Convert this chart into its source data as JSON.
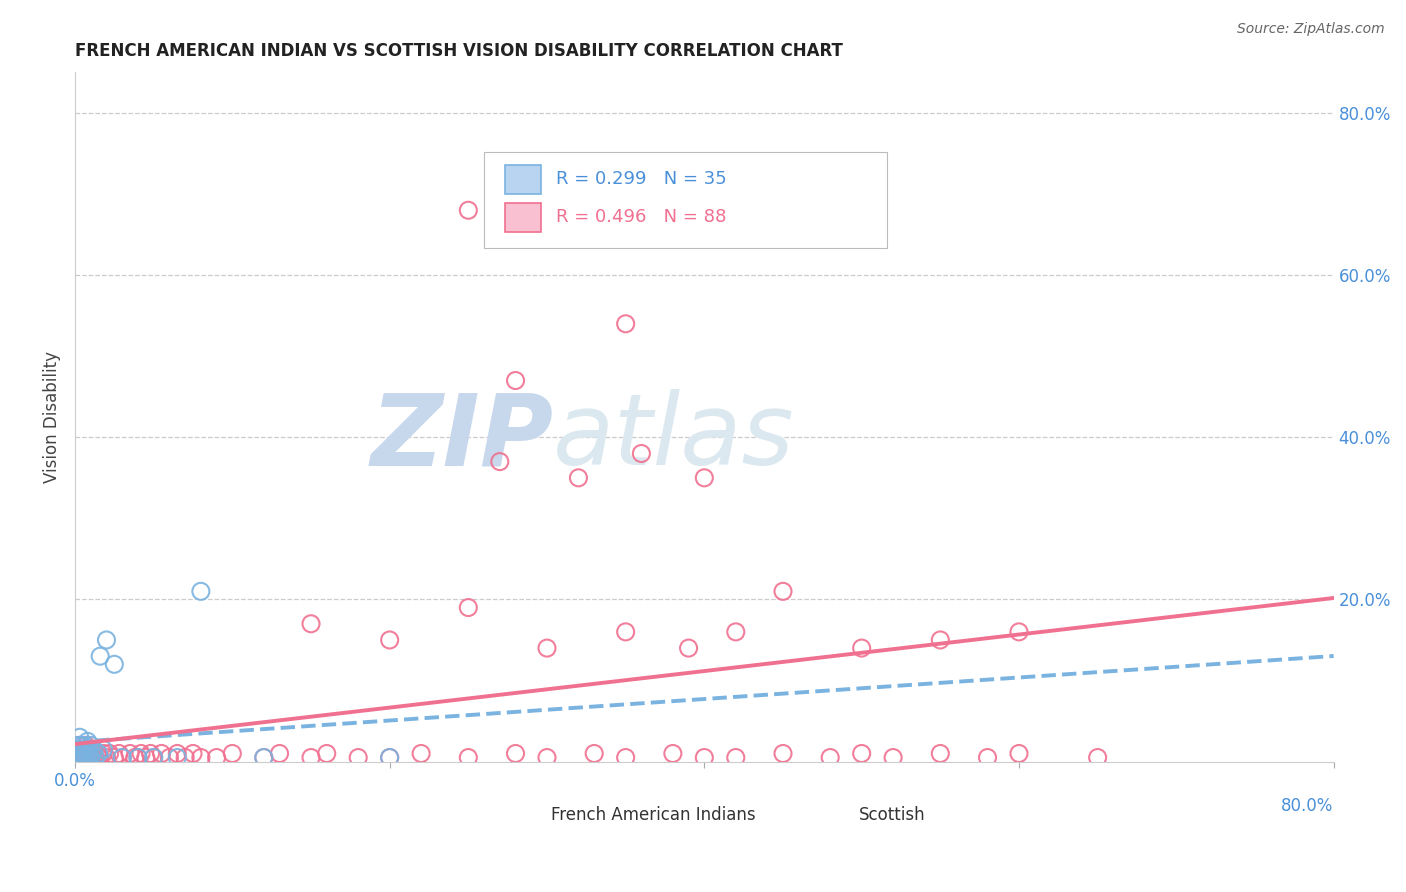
{
  "title": "FRENCH AMERICAN INDIAN VS SCOTTISH VISION DISABILITY CORRELATION CHART",
  "source": "Source: ZipAtlas.com",
  "ylabel": "Vision Disability",
  "french_color": "#7ab3e0",
  "french_face_color": "#b8d4f0",
  "scottish_color": "#f07090",
  "scottish_face_color": "#f8c0d0",
  "background_color": "#ffffff",
  "french_x": [
    0.001,
    0.002,
    0.002,
    0.003,
    0.003,
    0.003,
    0.004,
    0.004,
    0.005,
    0.005,
    0.005,
    0.006,
    0.006,
    0.007,
    0.007,
    0.008,
    0.008,
    0.009,
    0.01,
    0.01,
    0.011,
    0.012,
    0.013,
    0.015,
    0.016,
    0.018,
    0.02,
    0.025,
    0.03,
    0.04,
    0.05,
    0.065,
    0.08,
    0.12,
    0.2
  ],
  "french_y": [
    0.005,
    0.01,
    0.02,
    0.005,
    0.015,
    0.03,
    0.01,
    0.02,
    0.005,
    0.01,
    0.015,
    0.005,
    0.02,
    0.01,
    0.015,
    0.005,
    0.025,
    0.01,
    0.005,
    0.02,
    0.01,
    0.015,
    0.005,
    0.01,
    0.13,
    0.015,
    0.15,
    0.12,
    0.005,
    0.005,
    0.005,
    0.005,
    0.21,
    0.005,
    0.005
  ],
  "scottish_x": [
    0.001,
    0.001,
    0.002,
    0.002,
    0.003,
    0.003,
    0.003,
    0.004,
    0.004,
    0.005,
    0.005,
    0.006,
    0.006,
    0.007,
    0.007,
    0.008,
    0.008,
    0.009,
    0.01,
    0.01,
    0.011,
    0.012,
    0.013,
    0.014,
    0.015,
    0.016,
    0.018,
    0.02,
    0.022,
    0.025,
    0.028,
    0.03,
    0.035,
    0.038,
    0.04,
    0.042,
    0.045,
    0.048,
    0.05,
    0.055,
    0.06,
    0.065,
    0.07,
    0.075,
    0.08,
    0.09,
    0.1,
    0.12,
    0.13,
    0.15,
    0.16,
    0.18,
    0.2,
    0.22,
    0.25,
    0.28,
    0.3,
    0.33,
    0.35,
    0.38,
    0.4,
    0.42,
    0.45,
    0.48,
    0.5,
    0.52,
    0.55,
    0.58,
    0.6,
    0.65,
    0.27,
    0.32,
    0.36,
    0.39,
    0.42,
    0.15,
    0.2,
    0.25,
    0.3,
    0.35,
    0.25,
    0.35,
    0.28,
    0.4,
    0.45,
    0.5,
    0.55,
    0.6
  ],
  "scottish_y": [
    0.005,
    0.01,
    0.005,
    0.015,
    0.005,
    0.01,
    0.02,
    0.005,
    0.015,
    0.005,
    0.01,
    0.005,
    0.015,
    0.005,
    0.02,
    0.005,
    0.01,
    0.005,
    0.005,
    0.015,
    0.005,
    0.01,
    0.005,
    0.01,
    0.005,
    0.005,
    0.01,
    0.005,
    0.01,
    0.005,
    0.01,
    0.005,
    0.01,
    0.005,
    0.005,
    0.01,
    0.005,
    0.01,
    0.005,
    0.01,
    0.005,
    0.01,
    0.005,
    0.01,
    0.005,
    0.005,
    0.01,
    0.005,
    0.01,
    0.005,
    0.01,
    0.005,
    0.005,
    0.01,
    0.005,
    0.01,
    0.005,
    0.01,
    0.005,
    0.01,
    0.005,
    0.005,
    0.01,
    0.005,
    0.01,
    0.005,
    0.01,
    0.005,
    0.01,
    0.005,
    0.37,
    0.35,
    0.38,
    0.14,
    0.16,
    0.17,
    0.15,
    0.19,
    0.14,
    0.16,
    0.68,
    0.54,
    0.47,
    0.35,
    0.21,
    0.14,
    0.15,
    0.16
  ],
  "xlim": [
    0.0,
    0.8
  ],
  "ylim": [
    0.0,
    0.85
  ],
  "xticks": [
    0.0,
    0.2,
    0.4,
    0.6,
    0.8
  ],
  "yticks_right": [
    0.2,
    0.4,
    0.6,
    0.8
  ],
  "grid_color": "#cccccc",
  "watermark_zip": "ZIP",
  "watermark_atlas": "atlas",
  "watermark_color": "#c8d8ec",
  "watermark_color2": "#dce8f0",
  "title_fontsize": 12,
  "tick_fontsize": 12,
  "legend_r1": "R = 0.299   N = 35",
  "legend_r2": "R = 0.496   N = 88",
  "legend_label1": "French American Indians",
  "legend_label2": "Scottish"
}
